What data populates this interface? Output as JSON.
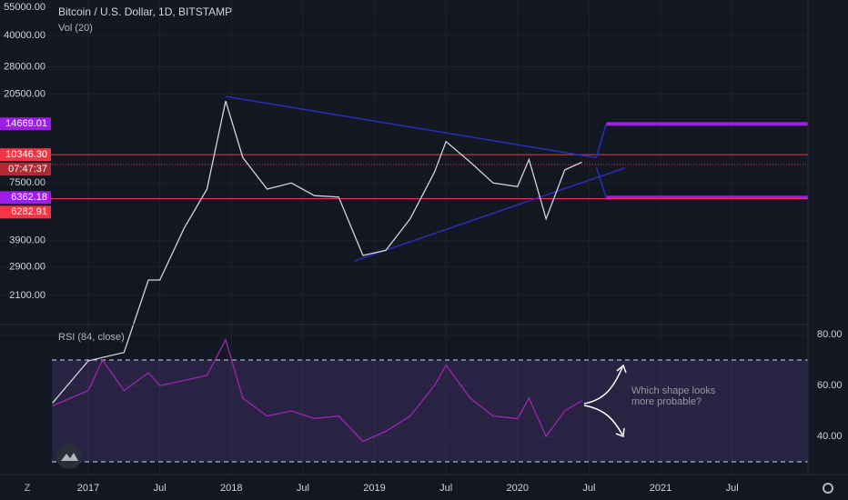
{
  "chart_data": [
    {
      "type": "line",
      "title": "Bitcoin / U.S. Dollar, 1D, BITSTAMP",
      "subtitle": "Vol (20)",
      "log_scale": true,
      "grid": true,
      "color": "#d1d4dc",
      "x": [
        2016.75,
        2017.0,
        2017.25,
        2017.42,
        2017.5,
        2017.67,
        2017.83,
        2017.96,
        2018.08,
        2018.25,
        2018.42,
        2018.58,
        2018.75,
        2018.92,
        2019.08,
        2019.25,
        2019.42,
        2019.5,
        2019.67,
        2019.83,
        2020.0,
        2020.08,
        2020.2,
        2020.33,
        2020.45
      ],
      "values": [
        620,
        1000,
        1100,
        2500,
        2500,
        4500,
        7000,
        19000,
        10000,
        7000,
        7500,
        6500,
        6400,
        3300,
        3500,
        5000,
        8500,
        12000,
        9500,
        7500,
        7200,
        9800,
        5000,
        8700,
        9500
      ],
      "xlim": [
        2016.383,
        2022.03
      ],
      "xticks": [
        2017,
        {
          "value": 2017.5,
          "label": "Jul"
        },
        2018,
        {
          "value": 2018.5,
          "label": "Jul"
        },
        2019,
        {
          "value": 2019.5,
          "label": "Jul"
        },
        2020,
        {
          "value": 2020.5,
          "label": "Jul"
        },
        2021,
        {
          "value": 2021.5,
          "label": "Jul"
        }
      ],
      "ylim": [
        1540,
        59700
      ],
      "yticks": [
        {
          "value": 55000,
          "label": "55000.00"
        },
        {
          "value": 40000,
          "label": "40000.00"
        },
        {
          "value": 28000,
          "label": "28000.00"
        },
        {
          "value": 20500,
          "label": "20500.00"
        },
        {
          "value": 7500,
          "label": "7500.00"
        },
        {
          "value": 3900,
          "label": "3900.00"
        },
        {
          "value": 2900,
          "label": "2900.00"
        },
        {
          "value": 2100,
          "label": "2100.00"
        }
      ],
      "levels": [
        {
          "value": 14669.01,
          "label": "14669.01",
          "color": "#9b1fe8",
          "from": 2020.62
        },
        {
          "value": 10346.3,
          "label": "10346.30",
          "color": "#f23645",
          "from": 2016.383
        },
        {
          "value": 6362.18,
          "label": "6362.18",
          "color": "#9b1fe8",
          "from": 2020.62
        },
        {
          "value": 6282.91,
          "label": "6282.91",
          "color": "#f23645",
          "from": 2016.383
        }
      ],
      "last_price": 9250,
      "countdown": "07:47:37",
      "trendlines": [
        {
          "x": [
            2017.96,
            2020.55
          ],
          "values": [
            20000,
            10000
          ],
          "color": "#2a2eb8"
        },
        {
          "x": [
            2018.86,
            2020.75
          ],
          "values": [
            3100,
            8900
          ],
          "color": "#2a2eb8"
        },
        {
          "x": [
            2020.55,
            2020.62
          ],
          "values": [
            10000,
            14669.01
          ],
          "color": "#2a2eb8"
        },
        {
          "x": [
            2020.55,
            2020.62
          ],
          "values": [
            9000,
            6362.18
          ],
          "color": "#2a2eb8"
        }
      ]
    },
    {
      "type": "line",
      "title": "RSI (84, close)",
      "color": "#9c27b0",
      "x": [
        2016.75,
        2017.0,
        2017.1,
        2017.25,
        2017.42,
        2017.5,
        2017.67,
        2017.83,
        2017.96,
        2018.08,
        2018.25,
        2018.42,
        2018.58,
        2018.75,
        2018.92,
        2019.08,
        2019.25,
        2019.42,
        2019.5,
        2019.67,
        2019.83,
        2020.0,
        2020.08,
        2020.2,
        2020.33,
        2020.45
      ],
      "values": [
        52,
        58,
        70,
        58,
        65,
        60,
        62,
        64,
        78,
        55,
        48,
        50,
        47,
        48,
        38,
        42,
        48,
        60,
        68,
        55,
        48,
        47,
        55,
        40,
        50,
        54
      ],
      "ylim": [
        25,
        83.6
      ],
      "yticks": [
        {
          "value": 80,
          "label": "80.00"
        },
        {
          "value": 60,
          "label": "60.00"
        },
        {
          "value": 40,
          "label": "40.00"
        }
      ],
      "bands": [
        70,
        30
      ],
      "annotation": [
        "Which shape looks",
        "more probable?"
      ]
    }
  ]
}
